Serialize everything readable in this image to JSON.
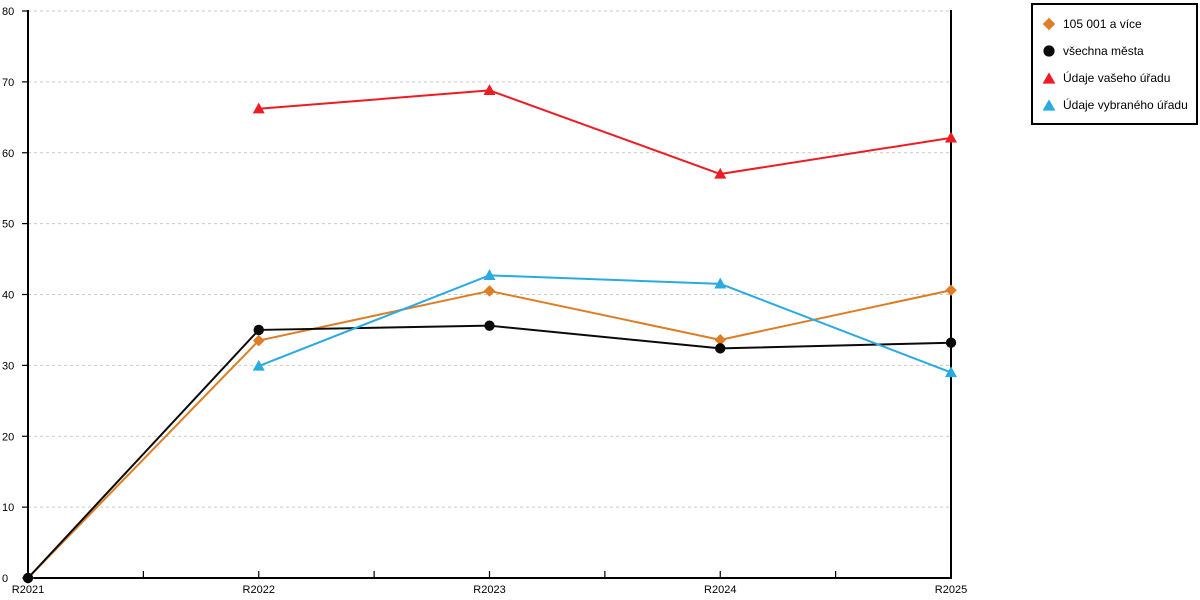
{
  "chart_data": {
    "type": "line",
    "categories": [
      "R2021",
      "R2022",
      "R2023",
      "R2024",
      "R2025"
    ],
    "xlabel": "",
    "ylabel": "",
    "y_axis": {
      "min": 0,
      "max": 80,
      "step": 10,
      "ticks": [
        0,
        10,
        20,
        30,
        40,
        50,
        60,
        70,
        80
      ]
    },
    "grid": "horizontal-dashed",
    "grid_color": "#c9c9c9",
    "axis_color": "#000000",
    "legend_position": "top-right",
    "series": [
      {
        "name": "105 001 a více",
        "color": "#DD7E26",
        "marker": "diamond",
        "values": [
          0,
          33.5,
          40.5,
          33.6,
          40.6
        ]
      },
      {
        "name": "všechna města",
        "color": "#0a0a0a",
        "marker": "circle",
        "values": [
          0,
          35.0,
          35.6,
          32.4,
          33.2
        ]
      },
      {
        "name": "Údaje vašeho úřadu",
        "color": "#ED1C24",
        "marker": "triangle",
        "values": [
          null,
          66.2,
          68.8,
          57.0,
          62.1
        ]
      },
      {
        "name": "Údaje vybraného úřadu",
        "color": "#29ABE2",
        "marker": "triangle",
        "values": [
          null,
          29.9,
          42.7,
          41.5,
          29.0
        ]
      }
    ]
  }
}
